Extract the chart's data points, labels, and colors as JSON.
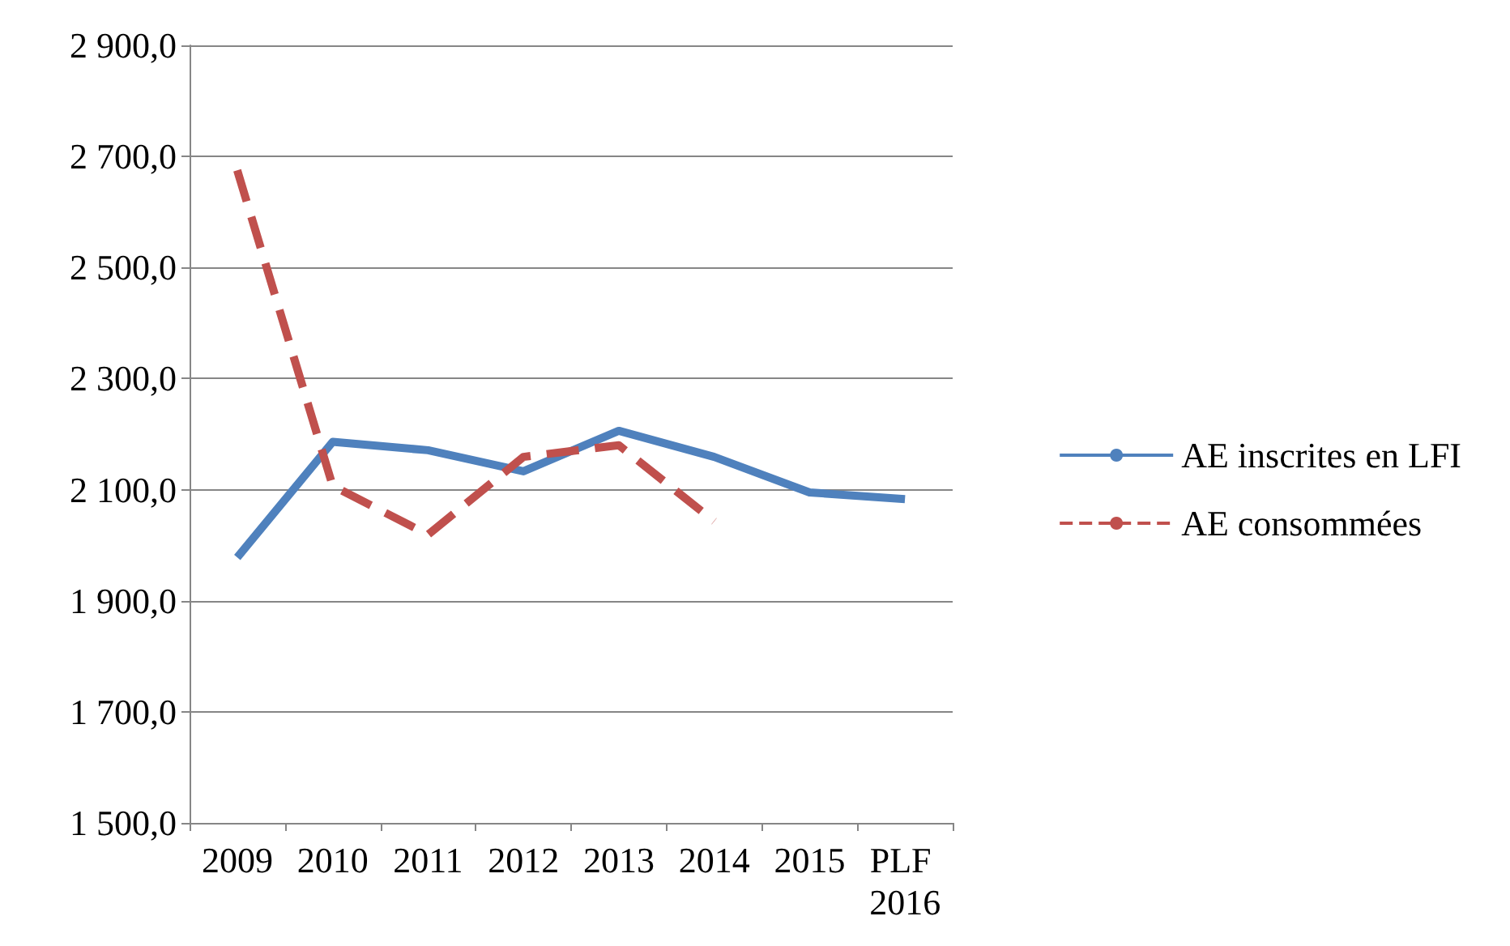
{
  "chart_data": {
    "type": "line",
    "categories": [
      "2009",
      "2010",
      "2011",
      "2012",
      "2013",
      "2014",
      "2015",
      "PLF 2016"
    ],
    "series": [
      {
        "name": "AE inscrites en LFI",
        "color": "#4f81bd",
        "line_style": "solid",
        "values": [
          1978,
          2186,
          2171,
          2133,
          2206,
          2159,
          2095,
          2083
        ]
      },
      {
        "name": "AE consommées",
        "color": "#c0504d",
        "line_style": "dashed",
        "values": [
          2675,
          2107,
          2019,
          2159,
          2180,
          2043,
          null,
          null
        ]
      }
    ],
    "ylim": [
      1500,
      2900
    ],
    "yticks": [
      {
        "value": 1500,
        "label": "1 500,0"
      },
      {
        "value": 1700,
        "label": "1 700,0"
      },
      {
        "value": 1900,
        "label": "1 900,0"
      },
      {
        "value": 2100,
        "label": "2 100,0"
      },
      {
        "value": 2300,
        "label": "2 300,0"
      },
      {
        "value": 2500,
        "label": "2 500,0"
      },
      {
        "value": 2700,
        "label": "2 700,0"
      },
      {
        "value": 2900,
        "label": "2 900,0"
      }
    ],
    "grid": "y",
    "legend": "right",
    "marker": "none"
  }
}
